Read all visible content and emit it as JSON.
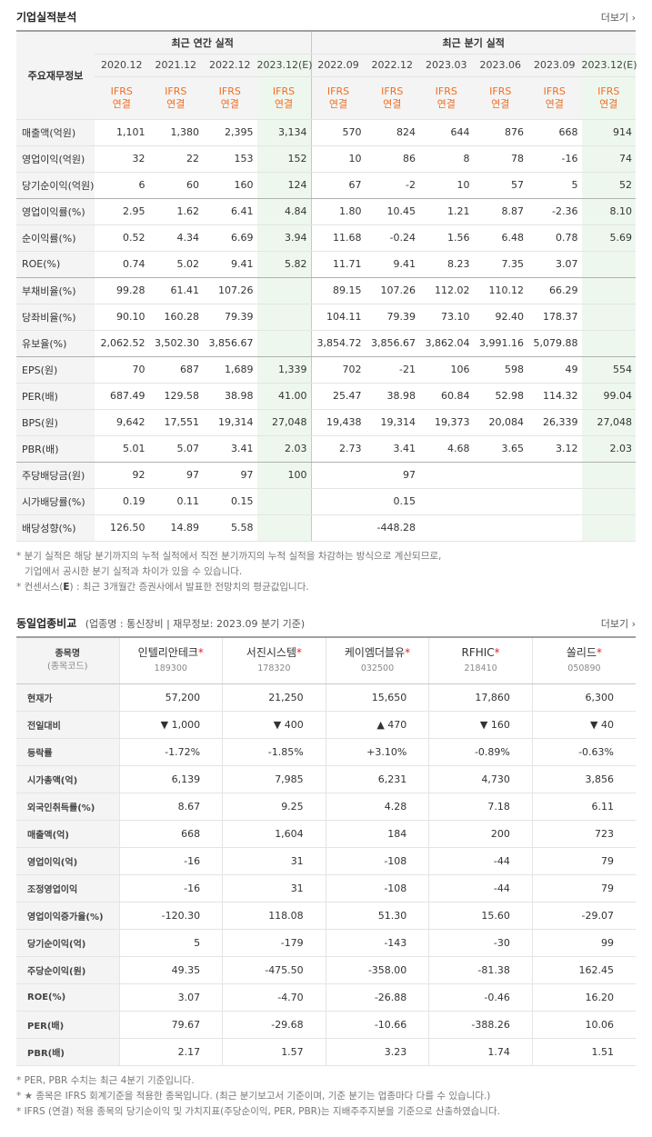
{
  "section1": {
    "title": "기업실적분석",
    "more_label": "더보기",
    "corner_label": "주요재무정보",
    "group_annual": "최근 연간 실적",
    "group_quarter": "최근 분기 실적",
    "periods": [
      "2020.12",
      "2021.12",
      "2022.12",
      "2023.12(E)",
      "2022.09",
      "2022.12",
      "2023.03",
      "2023.06",
      "2023.09",
      "2023.12(E)"
    ],
    "standard_line1": "IFRS",
    "standard_line2": "연결",
    "rows": [
      {
        "label": "매출액(억원)",
        "values": [
          "1,101",
          "1,380",
          "2,395",
          "3,134",
          "570",
          "824",
          "644",
          "876",
          "668",
          "914"
        ]
      },
      {
        "label": "영업이익(억원)",
        "values": [
          "32",
          "22",
          "153",
          "152",
          "10",
          "86",
          "8",
          "78",
          "-16",
          "74"
        ]
      },
      {
        "label": "당기순이익(억원)",
        "values": [
          "6",
          "60",
          "160",
          "124",
          "67",
          "-2",
          "10",
          "57",
          "5",
          "52"
        ]
      },
      {
        "label": "영업이익률(%)",
        "values": [
          "2.95",
          "1.62",
          "6.41",
          "4.84",
          "1.80",
          "10.45",
          "1.21",
          "8.87",
          "-2.36",
          "8.10"
        ]
      },
      {
        "label": "순이익률(%)",
        "values": [
          "0.52",
          "4.34",
          "6.69",
          "3.94",
          "11.68",
          "-0.24",
          "1.56",
          "6.48",
          "0.78",
          "5.69"
        ]
      },
      {
        "label": "ROE(%)",
        "values": [
          "0.74",
          "5.02",
          "9.41",
          "5.82",
          "11.71",
          "9.41",
          "8.23",
          "7.35",
          "3.07",
          ""
        ]
      },
      {
        "label": "부채비율(%)",
        "values": [
          "99.28",
          "61.41",
          "107.26",
          "",
          "89.15",
          "107.26",
          "112.02",
          "110.12",
          "66.29",
          ""
        ]
      },
      {
        "label": "당좌비율(%)",
        "values": [
          "90.10",
          "160.28",
          "79.39",
          "",
          "104.11",
          "79.39",
          "73.10",
          "92.40",
          "178.37",
          ""
        ]
      },
      {
        "label": "유보율(%)",
        "values": [
          "2,062.52",
          "3,502.30",
          "3,856.67",
          "",
          "3,854.72",
          "3,856.67",
          "3,862.04",
          "3,991.16",
          "5,079.88",
          ""
        ]
      },
      {
        "label": "EPS(원)",
        "values": [
          "70",
          "687",
          "1,689",
          "1,339",
          "702",
          "-21",
          "106",
          "598",
          "49",
          "554"
        ]
      },
      {
        "label": "PER(배)",
        "values": [
          "687.49",
          "129.58",
          "38.98",
          "41.00",
          "25.47",
          "38.98",
          "60.84",
          "52.98",
          "114.32",
          "99.04"
        ]
      },
      {
        "label": "BPS(원)",
        "values": [
          "9,642",
          "17,551",
          "19,314",
          "27,048",
          "19,438",
          "19,314",
          "19,373",
          "20,084",
          "26,339",
          "27,048"
        ]
      },
      {
        "label": "PBR(배)",
        "values": [
          "5.01",
          "5.07",
          "3.41",
          "2.03",
          "2.73",
          "3.41",
          "4.68",
          "3.65",
          "3.12",
          "2.03"
        ]
      },
      {
        "label": "주당배당금(원)",
        "values": [
          "92",
          "97",
          "97",
          "100",
          "",
          "97",
          "",
          "",
          "",
          ""
        ]
      },
      {
        "label": "시가배당률(%)",
        "values": [
          "0.19",
          "0.11",
          "0.15",
          "",
          "",
          "0.15",
          "",
          "",
          "",
          ""
        ]
      },
      {
        "label": "배당성향(%)",
        "values": [
          "126.50",
          "14.89",
          "5.58",
          "",
          "",
          "-448.28",
          "",
          "",
          "",
          ""
        ]
      }
    ],
    "notes": [
      "* 분기 실적은 해당 분기까지의 누적 실적에서 직전 분기까지의 누적 실적을 차감하는 방식으로 계산되므로,",
      "기업에서 공시한 분기 실적과 차이가 있을 수 있습니다."
    ],
    "note_consensus_prefix": "* 컨센서스(",
    "note_consensus_mark": "E",
    "note_consensus_suffix": ") : 최근 3개월간 증권사에서 발표한 전망치의 평균값입니다."
  },
  "section2": {
    "title": "동일업종비교",
    "subtitle": "(업종명 : 통신장비 | 재무정보: 2023.09 분기 기준)",
    "more_label": "더보기",
    "corner_label": "종목명",
    "corner_sub": "(종목코드)",
    "companies": [
      {
        "name": "인텔리안테크",
        "code": "189300"
      },
      {
        "name": "서진시스템",
        "code": "178320"
      },
      {
        "name": "케이엠더블유",
        "code": "032500"
      },
      {
        "name": "RFHIC",
        "code": "218410"
      },
      {
        "name": "쏠리드",
        "code": "050890"
      }
    ],
    "rows": [
      {
        "label": "현재가",
        "values": [
          "57,200",
          "21,250",
          "15,650",
          "17,860",
          "6,300"
        ]
      },
      {
        "label": "전일대비",
        "values": [
          "▼ 1,000",
          "▼ 400",
          "▲ 470",
          "▼ 160",
          "▼ 40"
        ],
        "dirs": [
          "down",
          "down",
          "up",
          "down",
          "down"
        ]
      },
      {
        "label": "등락률",
        "values": [
          "-1.72%",
          "-1.85%",
          "+3.10%",
          "-0.89%",
          "-0.63%"
        ],
        "dirs": [
          "down",
          "down",
          "up",
          "down",
          "down"
        ]
      },
      {
        "label": "시가총액(억)",
        "values": [
          "6,139",
          "7,985",
          "6,231",
          "4,730",
          "3,856"
        ]
      },
      {
        "label": "외국인취득률(%)",
        "values": [
          "8.67",
          "9.25",
          "4.28",
          "7.18",
          "6.11"
        ]
      },
      {
        "label": "매출액(억)",
        "values": [
          "668",
          "1,604",
          "184",
          "200",
          "723"
        ]
      },
      {
        "label": "영업이익(억)",
        "values": [
          "-16",
          "31",
          "-108",
          "-44",
          "79"
        ]
      },
      {
        "label": "조정영업이익",
        "values": [
          "-16",
          "31",
          "-108",
          "-44",
          "79"
        ]
      },
      {
        "label": "영업이익증가율(%)",
        "values": [
          "-120.30",
          "118.08",
          "51.30",
          "15.60",
          "-29.07"
        ]
      },
      {
        "label": "당기순이익(억)",
        "values": [
          "5",
          "-179",
          "-143",
          "-30",
          "99"
        ]
      },
      {
        "label": "주당순이익(원)",
        "values": [
          "49.35",
          "-475.50",
          "-358.00",
          "-81.38",
          "162.45"
        ]
      },
      {
        "label": "ROE(%)",
        "values": [
          "3.07",
          "-4.70",
          "-26.88",
          "-0.46",
          "16.20"
        ]
      },
      {
        "label": "PER(배)",
        "values": [
          "79.67",
          "-29.68",
          "-10.66",
          "-388.26",
          "10.06"
        ]
      },
      {
        "label": "PBR(배)",
        "values": [
          "2.17",
          "1.57",
          "3.23",
          "1.74",
          "1.51"
        ]
      }
    ],
    "notes": [
      "* PER, PBR 수치는 최근 4분기 기준입니다.",
      "* ★ 종목은 IFRS 회계기준을 적용한 종목입니다. (최근 분기보고서 기준이며, 기준 분기는 업종마다 다를 수 있습니다.)",
      "* IFRS (연결) 적용 종목의 당기순이익 및 가치지표(주당순이익, PER, PBR)는 지배주주지분을 기준으로 산출하였습니다."
    ]
  },
  "colors": {
    "negative": "#e0281e",
    "up": "#e0281e",
    "down": "#1a6fd1",
    "ifrs": "#f26d21",
    "estimate_bg": "#eef7ee"
  }
}
